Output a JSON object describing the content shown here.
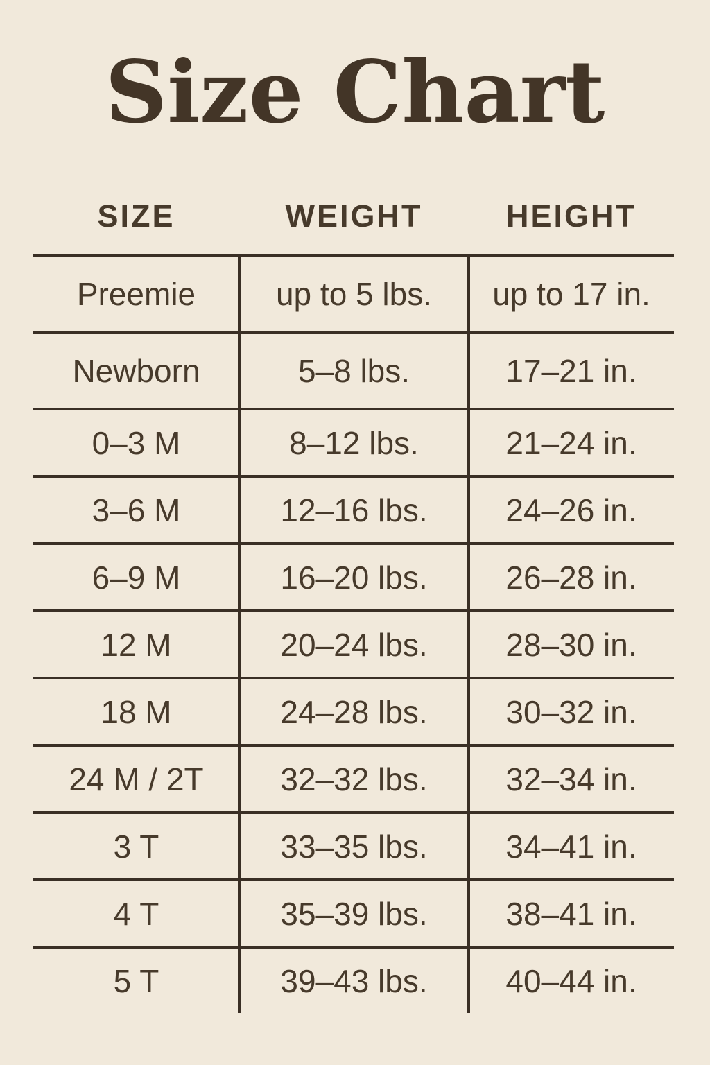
{
  "title": "Size Chart",
  "colors": {
    "background": "#f1e9db",
    "ink": "#473a2b",
    "title_ink": "#433527",
    "line": "#3a2f25"
  },
  "table": {
    "columns": [
      "SIZE",
      "WEIGHT",
      "HEIGHT"
    ],
    "rows": [
      {
        "size": "Preemie",
        "weight": "up to 5 lbs.",
        "height": "up to 17 in."
      },
      {
        "size": "Newborn",
        "weight": "5–8 lbs.",
        "height": "17–21 in."
      },
      {
        "size": "0–3 M",
        "weight": "8–12 lbs.",
        "height": "21–24 in."
      },
      {
        "size": "3–6 M",
        "weight": "12–16 lbs.",
        "height": "24–26 in."
      },
      {
        "size": "6–9 M",
        "weight": "16–20 lbs.",
        "height": "26–28 in."
      },
      {
        "size": "12 M",
        "weight": "20–24 lbs.",
        "height": "28–30 in."
      },
      {
        "size": "18 M",
        "weight": "24–28 lbs.",
        "height": "30–32 in."
      },
      {
        "size": "24 M / 2T",
        "weight": "32–32 lbs.",
        "height": "32–34 in."
      },
      {
        "size": "3 T",
        "weight": "33–35 lbs.",
        "height": "34–41 in."
      },
      {
        "size": "4 T",
        "weight": "35–39 lbs.",
        "height": "38–41 in."
      },
      {
        "size": "5 T",
        "weight": "39–43 lbs.",
        "height": "40–44 in."
      }
    ]
  },
  "chart_data": {
    "type": "table",
    "title": "Size Chart",
    "columns": [
      "SIZE",
      "WEIGHT",
      "HEIGHT"
    ],
    "rows": [
      [
        "Preemie",
        "up to 5 lbs.",
        "up to 17 in."
      ],
      [
        "Newborn",
        "5–8 lbs.",
        "17–21 in."
      ],
      [
        "0–3 M",
        "8–12 lbs.",
        "21–24 in."
      ],
      [
        "3–6 M",
        "12–16 lbs.",
        "24–26 in."
      ],
      [
        "6–9 M",
        "16–20 lbs.",
        "26–28 in."
      ],
      [
        "12 M",
        "20–24 lbs.",
        "28–30 in."
      ],
      [
        "18 M",
        "24–28 lbs.",
        "30–32 in."
      ],
      [
        "24 M / 2T",
        "32–32 lbs.",
        "32–34 in."
      ],
      [
        "3 T",
        "33–35 lbs.",
        "34–41 in."
      ],
      [
        "4 T",
        "35–39 lbs.",
        "38–41 in."
      ],
      [
        "5 T",
        "39–43 lbs.",
        "40–44 in."
      ]
    ]
  }
}
